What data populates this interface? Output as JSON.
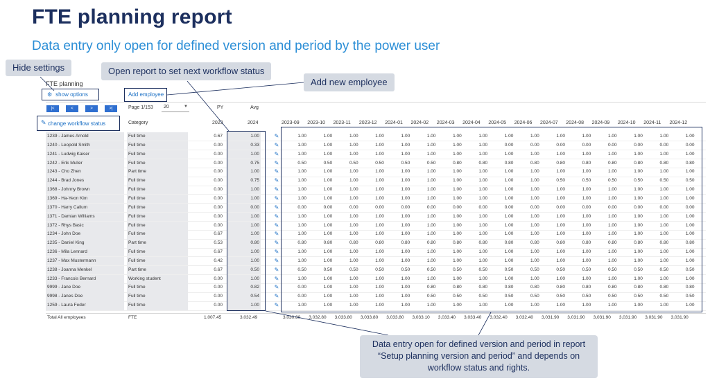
{
  "title": "FTE planning report",
  "subtitle": "Data entry only open for defined version and period by the power user",
  "callouts": {
    "hide_settings": "Hide settings",
    "open_report": "Open report to set next workflow status",
    "add_new_employee": "Add new employee",
    "data_entry": "Data entry open for defined version and period in report “Setup planning version and period” and depends on workflow status and rights."
  },
  "panel": {
    "label": "FTE planning",
    "show_options": "show options",
    "add_employee": "Add employee",
    "change_workflow_status": "change workflow status",
    "nav": [
      "|<",
      "<",
      ">",
      ">|"
    ],
    "page_info": "Page 1/153",
    "page_size": "20"
  },
  "table": {
    "header": {
      "py": "PY",
      "avg": "Avg",
      "category": "Category",
      "py_year": "2023",
      "avg_year": "2024",
      "months": [
        "2023-09",
        "2023-10",
        "2023-11",
        "2023-12",
        "2024-01",
        "2024-02",
        "2024-03",
        "2024-04",
        "2024-05",
        "2024-06",
        "2024-07",
        "2024-08",
        "2024-09",
        "2024-10",
        "2024-11",
        "2024-12"
      ]
    },
    "rows": [
      {
        "name": "1239 - James Arnold",
        "cat": "Full time",
        "py": "0.67",
        "avg": "1.00",
        "m": [
          "1.00",
          "1.00",
          "1.00",
          "1.00",
          "1.00",
          "1.00",
          "1.00",
          "1.00",
          "1.00",
          "1.00",
          "1.00",
          "1.00",
          "1.00",
          "1.00",
          "1.00",
          "1.00"
        ]
      },
      {
        "name": "1240 - Leopold Smith",
        "cat": "Full time",
        "py": "0.00",
        "avg": "0.33",
        "m": [
          "1.00",
          "1.00",
          "1.00",
          "1.00",
          "1.00",
          "1.00",
          "1.00",
          "1.00",
          "0.00",
          "0.00",
          "0.00",
          "0.00",
          "0.00",
          "0.00",
          "0.00",
          "0.00"
        ]
      },
      {
        "name": "1241 - Ludwig Kaiser",
        "cat": "Full time",
        "py": "0.00",
        "avg": "1.00",
        "m": [
          "1.00",
          "1.00",
          "1.00",
          "1.00",
          "1.00",
          "1.00",
          "1.00",
          "1.00",
          "1.00",
          "1.00",
          "1.00",
          "1.00",
          "1.00",
          "1.00",
          "1.00",
          "1.00"
        ]
      },
      {
        "name": "1242 - Erik Muller",
        "cat": "Full time",
        "py": "0.00",
        "avg": "0.75",
        "m": [
          "0.50",
          "0.50",
          "0.50",
          "0.50",
          "0.50",
          "0.50",
          "0.80",
          "0.80",
          "0.80",
          "0.80",
          "0.80",
          "0.80",
          "0.80",
          "0.80",
          "0.80",
          "0.80"
        ]
      },
      {
        "name": "1243 - Cho Zhen",
        "cat": "Part time",
        "py": "0.00",
        "avg": "1.00",
        "m": [
          "1.00",
          "1.00",
          "1.00",
          "1.00",
          "1.00",
          "1.00",
          "1.00",
          "1.00",
          "1.00",
          "1.00",
          "1.00",
          "1.00",
          "1.00",
          "1.00",
          "1.00",
          "1.00"
        ]
      },
      {
        "name": "1244 - Brad Jones",
        "cat": "Full time",
        "py": "0.00",
        "avg": "0.75",
        "m": [
          "1.00",
          "1.00",
          "1.00",
          "1.00",
          "1.00",
          "1.00",
          "1.00",
          "1.00",
          "1.00",
          "1.00",
          "0.50",
          "0.50",
          "0.50",
          "0.50",
          "0.50",
          "0.50"
        ]
      },
      {
        "name": "1368 - Johnny Brown",
        "cat": "Full time",
        "py": "0.00",
        "avg": "1.00",
        "m": [
          "1.00",
          "1.00",
          "1.00",
          "1.00",
          "1.00",
          "1.00",
          "1.00",
          "1.00",
          "1.00",
          "1.00",
          "1.00",
          "1.00",
          "1.00",
          "1.00",
          "1.00",
          "1.00"
        ]
      },
      {
        "name": "1369 - Ha-Yeon Kim",
        "cat": "Full time",
        "py": "0.00",
        "avg": "1.00",
        "m": [
          "1.00",
          "1.00",
          "1.00",
          "1.00",
          "1.00",
          "1.00",
          "1.00",
          "1.00",
          "1.00",
          "1.00",
          "1.00",
          "1.00",
          "1.00",
          "1.00",
          "1.00",
          "1.00"
        ]
      },
      {
        "name": "1370 - Harry Callum",
        "cat": "Full time",
        "py": "0.00",
        "avg": "0.00",
        "m": [
          "0.00",
          "0.00",
          "0.00",
          "0.00",
          "0.00",
          "0.00",
          "0.00",
          "0.00",
          "0.00",
          "0.00",
          "0.00",
          "0.00",
          "0.00",
          "0.00",
          "0.00",
          "0.00"
        ]
      },
      {
        "name": "1371 - Damian Williams",
        "cat": "Full time",
        "py": "0.00",
        "avg": "1.00",
        "m": [
          "1.00",
          "1.00",
          "1.00",
          "1.00",
          "1.00",
          "1.00",
          "1.00",
          "1.00",
          "1.00",
          "1.00",
          "1.00",
          "1.00",
          "1.00",
          "1.00",
          "1.00",
          "1.00"
        ]
      },
      {
        "name": "1372 - Rhys Basic",
        "cat": "Full time",
        "py": "0.00",
        "avg": "1.00",
        "m": [
          "1.00",
          "1.00",
          "1.00",
          "1.00",
          "1.00",
          "1.00",
          "1.00",
          "1.00",
          "1.00",
          "1.00",
          "1.00",
          "1.00",
          "1.00",
          "1.00",
          "1.00",
          "1.00"
        ]
      },
      {
        "name": "1234 - John Doe",
        "cat": "Full time",
        "py": "0.67",
        "avg": "1.00",
        "m": [
          "1.00",
          "1.00",
          "1.00",
          "1.00",
          "1.00",
          "1.00",
          "1.00",
          "1.00",
          "1.00",
          "1.00",
          "1.00",
          "1.00",
          "1.00",
          "1.00",
          "1.00",
          "1.00"
        ]
      },
      {
        "name": "1235 - Daniel King",
        "cat": "Part time",
        "py": "0.53",
        "avg": "0.80",
        "m": [
          "0.80",
          "0.80",
          "0.80",
          "0.80",
          "0.80",
          "0.80",
          "0.80",
          "0.80",
          "0.80",
          "0.80",
          "0.80",
          "0.80",
          "0.80",
          "0.80",
          "0.80",
          "0.80"
        ]
      },
      {
        "name": "1236 - Mila Lennard",
        "cat": "Full time",
        "py": "0.67",
        "avg": "1.00",
        "m": [
          "1.00",
          "1.00",
          "1.00",
          "1.00",
          "1.00",
          "1.00",
          "1.00",
          "1.00",
          "1.00",
          "1.00",
          "1.00",
          "1.00",
          "1.00",
          "1.00",
          "1.00",
          "1.00"
        ]
      },
      {
        "name": "1237 - Max Mustermann",
        "cat": "Full time",
        "py": "0.42",
        "avg": "1.00",
        "m": [
          "1.00",
          "1.00",
          "1.00",
          "1.00",
          "1.00",
          "1.00",
          "1.00",
          "1.00",
          "1.00",
          "1.00",
          "1.00",
          "1.00",
          "1.00",
          "1.00",
          "1.00",
          "1.00"
        ]
      },
      {
        "name": "1238 - Joanna Menkel",
        "cat": "Part time",
        "py": "0.67",
        "avg": "0.50",
        "m": [
          "0.50",
          "0.50",
          "0.50",
          "0.50",
          "0.50",
          "0.50",
          "0.50",
          "0.50",
          "0.50",
          "0.50",
          "0.50",
          "0.50",
          "0.50",
          "0.50",
          "0.50",
          "0.50"
        ]
      },
      {
        "name": "1233 - Francois Bernard",
        "cat": "Working student",
        "py": "0.00",
        "avg": "1.00",
        "m": [
          "1.00",
          "1.00",
          "1.00",
          "1.00",
          "1.00",
          "1.00",
          "1.00",
          "1.00",
          "1.00",
          "1.00",
          "1.00",
          "1.00",
          "1.00",
          "1.00",
          "1.00",
          "1.00"
        ]
      },
      {
        "name": "9999 - Jane Doe",
        "cat": "Full time",
        "py": "0.00",
        "avg": "0.82",
        "m": [
          "0.00",
          "1.00",
          "1.00",
          "1.00",
          "1.00",
          "0.80",
          "0.80",
          "0.80",
          "0.80",
          "0.80",
          "0.80",
          "0.80",
          "0.80",
          "0.80",
          "0.80",
          "0.80"
        ]
      },
      {
        "name": "9998 - Janes Doe",
        "cat": "Full time",
        "py": "0.00",
        "avg": "0.54",
        "m": [
          "0.00",
          "1.00",
          "1.00",
          "1.00",
          "1.00",
          "0.50",
          "0.50",
          "0.50",
          "0.50",
          "0.50",
          "0.50",
          "0.50",
          "0.50",
          "0.50",
          "0.50",
          "0.50"
        ]
      },
      {
        "name": "1259 - Laura Feder",
        "cat": "Full time",
        "py": "0.00",
        "avg": "1.00",
        "m": [
          "1.00",
          "1.00",
          "1.00",
          "1.00",
          "1.00",
          "1.00",
          "1.00",
          "1.00",
          "1.00",
          "1.00",
          "1.00",
          "1.00",
          "1.00",
          "1.00",
          "1.00",
          "1.00"
        ]
      }
    ],
    "total": {
      "label": "Total All employees",
      "cat": "FTE",
      "py": "1,007.45",
      "avg": "3,032.49",
      "m": [
        "3,030.80",
        "3,032.80",
        "3,033.80",
        "3,033.80",
        "3,033.80",
        "3,033.10",
        "3,033.40",
        "3,033.40",
        "3,032.40",
        "3,032.40",
        "3,031.90",
        "3,031.90",
        "3,031.90",
        "3,031.90",
        "3,031.90",
        "3,031.90"
      ]
    }
  }
}
